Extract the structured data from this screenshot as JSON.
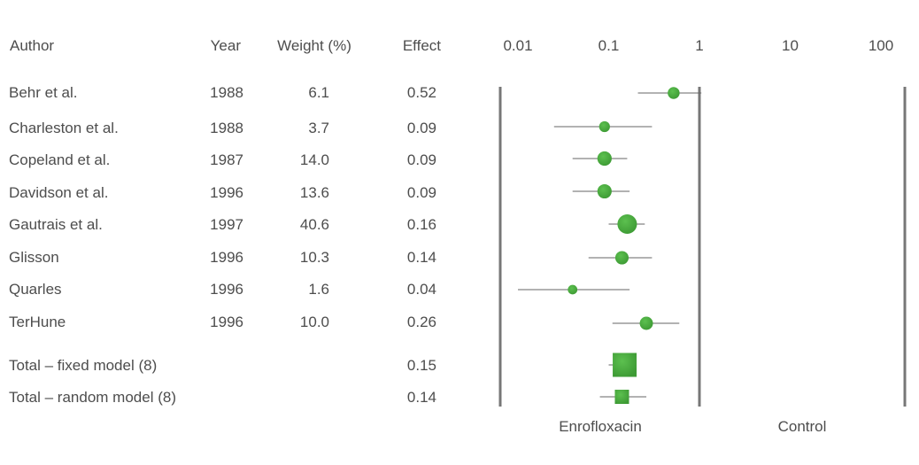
{
  "headers": {
    "author": "Author",
    "year": "Year",
    "weight": "Weight (%)",
    "effect": "Effect"
  },
  "studies": [
    {
      "author": "Behr et al.",
      "year": "1988",
      "weight": "6.1",
      "effect": "0.52"
    },
    {
      "author": "Charleston et al.",
      "year": "1988",
      "weight": "3.7",
      "effect": "0.09"
    },
    {
      "author": "Copeland et al.",
      "year": "1987",
      "weight": "14.0",
      "effect": "0.09"
    },
    {
      "author": "Davidson et al.",
      "year": "1996",
      "weight": "13.6",
      "effect": "0.09"
    },
    {
      "author": "Gautrais et al.",
      "year": "1997",
      "weight": "40.6",
      "effect": "0.16"
    },
    {
      "author": "Glisson",
      "year": "1996",
      "weight": "10.3",
      "effect": "0.14"
    },
    {
      "author": "Quarles",
      "year": "1996",
      "weight": "1.6",
      "effect": "0.04"
    },
    {
      "author": "TerHune",
      "year": "1996",
      "weight": "10.0",
      "effect": "0.26"
    }
  ],
  "totals": [
    {
      "author": "Total – fixed model (8)",
      "effect": "0.15"
    },
    {
      "author": "Total – random model (8)",
      "effect": "0.14"
    }
  ],
  "footer": {
    "left_label": "Enrofloxacin",
    "right_label": "Control"
  },
  "chart_data": {
    "type": "scatter",
    "subtype": "forest-plot",
    "x_scale": "log",
    "x_ticks": [
      "0.01",
      "0.1",
      "1",
      "10",
      "100"
    ],
    "xlim": [
      0.01,
      100
    ],
    "reference_line": 1,
    "marker_color": "#3d9a34",
    "series": [
      {
        "label": "Behr et al.",
        "effect": 0.52,
        "ci": [
          0.21,
          1.05
        ],
        "weight": 6.1
      },
      {
        "label": "Charleston et al.",
        "effect": 0.09,
        "ci": [
          0.025,
          0.3
        ],
        "weight": 3.7
      },
      {
        "label": "Copeland et al.",
        "effect": 0.09,
        "ci": [
          0.04,
          0.16
        ],
        "weight": 14.0
      },
      {
        "label": "Davidson et al.",
        "effect": 0.09,
        "ci": [
          0.04,
          0.17
        ],
        "weight": 13.6
      },
      {
        "label": "Gautrais et al.",
        "effect": 0.16,
        "ci": [
          0.1,
          0.25
        ],
        "weight": 40.6
      },
      {
        "label": "Glisson",
        "effect": 0.14,
        "ci": [
          0.06,
          0.3
        ],
        "weight": 10.3
      },
      {
        "label": "Quarles",
        "effect": 0.04,
        "ci": [
          0.01,
          0.17
        ],
        "weight": 1.6
      },
      {
        "label": "TerHune",
        "effect": 0.26,
        "ci": [
          0.11,
          0.6
        ],
        "weight": 10.0
      }
    ],
    "totals": [
      {
        "label": "Total – fixed model (8)",
        "effect": 0.15,
        "ci": [
          0.1,
          0.2
        ]
      },
      {
        "label": "Total – random model (8)",
        "effect": 0.14,
        "ci": [
          0.08,
          0.26
        ]
      }
    ]
  }
}
